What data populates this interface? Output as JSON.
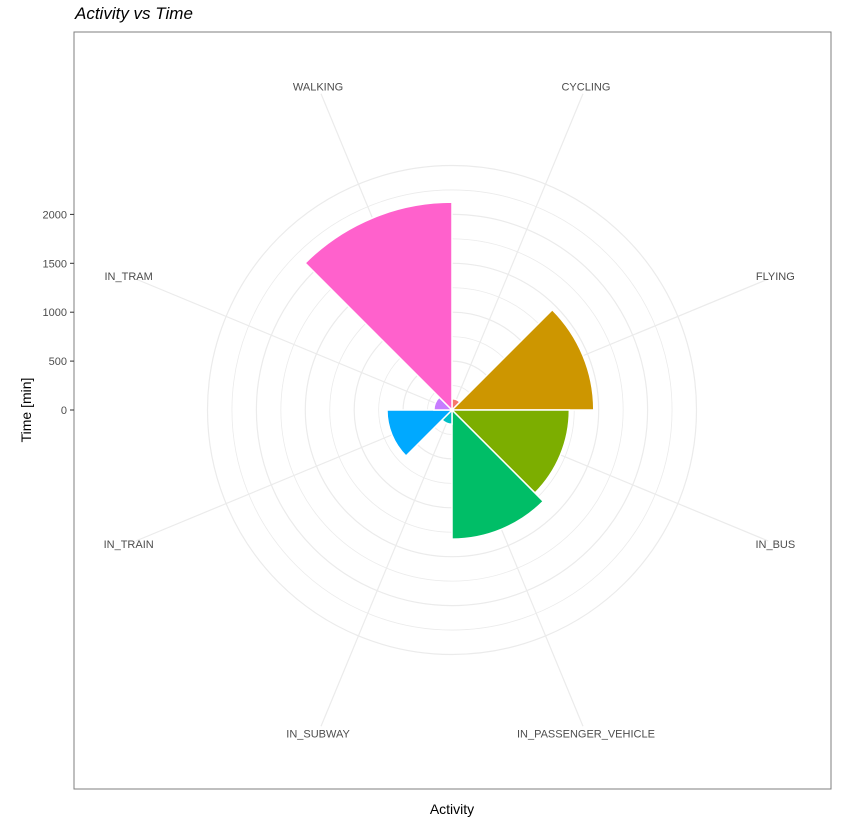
{
  "chart_data": {
    "type": "polar-bar",
    "title": "Activity vs Time",
    "xlabel": "Activity",
    "ylabel": "Time [min]",
    "ylim": [
      0,
      2000
    ],
    "y_ticks": [
      0,
      500,
      1000,
      1500,
      2000
    ],
    "grid": true,
    "categories": [
      "CYCLING",
      "FLYING",
      "IN_BUS",
      "IN_PASSENGER_VEHICLE",
      "IN_SUBWAY",
      "IN_TRAIN",
      "IN_TRAM",
      "WALKING"
    ],
    "values": [
      115,
      1450,
      1200,
      1320,
      145,
      665,
      185,
      2125
    ],
    "colors": [
      "#F8766D",
      "#CD9600",
      "#7CAE00",
      "#00BE67",
      "#00BFC4",
      "#00A9FF",
      "#C77CFF",
      "#FF61CC"
    ]
  }
}
